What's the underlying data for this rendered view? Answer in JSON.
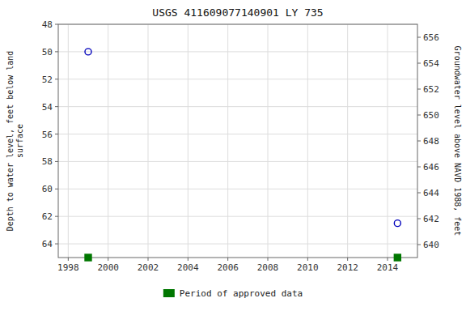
{
  "chart_data": {
    "type": "scatter",
    "title": "USGS 411609077140901 LY   735",
    "x": [
      1999.0,
      2014.5
    ],
    "series": [
      {
        "values": [
          50.0,
          62.5
        ],
        "color": "#0000bb",
        "marker": "circle"
      }
    ],
    "approved_data": {
      "name": "Period of approved data",
      "x": [
        1999.0,
        2014.5
      ],
      "color": "#007700",
      "marker": "square"
    },
    "xlim": [
      1997.5,
      2015.5
    ],
    "xticks": [
      1998,
      2000,
      2002,
      2004,
      2006,
      2008,
      2010,
      2012,
      2014
    ],
    "ylim": [
      65,
      48
    ],
    "yticks": [
      48,
      50,
      52,
      54,
      56,
      58,
      60,
      62,
      64
    ],
    "ylabel": "Depth to water level, feet below land\nsurface",
    "y2lim": [
      639,
      657
    ],
    "y2ticks": [
      640,
      642,
      644,
      646,
      648,
      650,
      652,
      654,
      656
    ],
    "y2label": "Groundwater level above NAVD 1988, feet",
    "grid": true,
    "legend": "bottom"
  }
}
